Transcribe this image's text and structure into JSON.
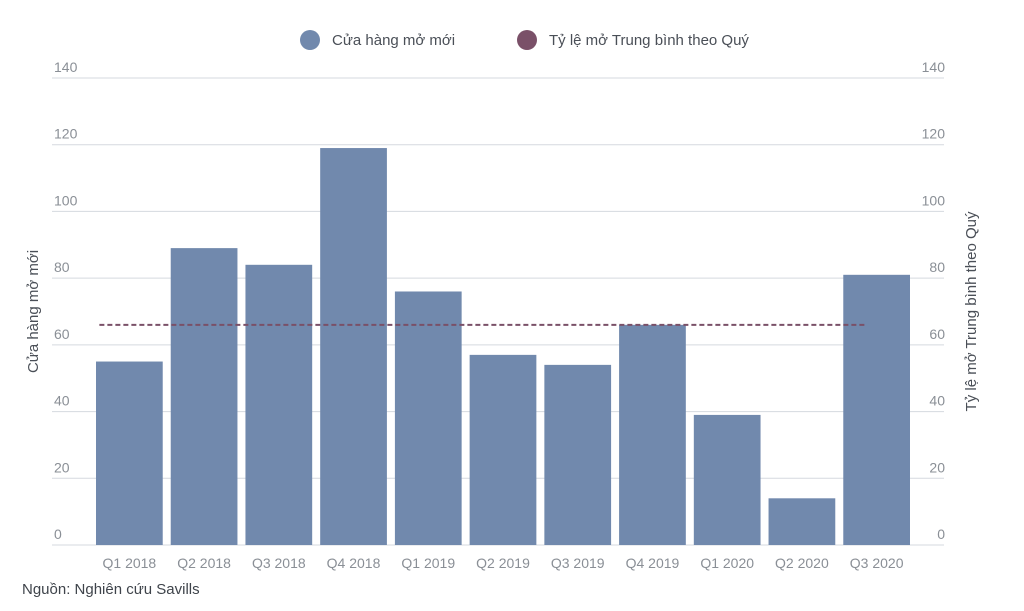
{
  "chart_data": {
    "type": "bar",
    "title": "",
    "categories": [
      "Q1 2018",
      "Q2 2018",
      "Q3 2018",
      "Q4 2018",
      "Q1 2019",
      "Q2 2019",
      "Q3 2019",
      "Q4 2019",
      "Q1 2020",
      "Q2 2020",
      "Q3 2020"
    ],
    "series": [
      {
        "name": "Cửa hàng mở mới",
        "type": "bar",
        "color": "#7189ad",
        "values": [
          55,
          89,
          84,
          119,
          76,
          57,
          54,
          66,
          39,
          14,
          81
        ]
      },
      {
        "name": "Tỷ lệ mở Trung bình theo Quý",
        "type": "dashed-line",
        "color": "#7a5068",
        "values": [
          66,
          66,
          66,
          66,
          66,
          66,
          66,
          66,
          66,
          66,
          66
        ]
      }
    ],
    "ylabel_left": "Cửa hàng mở mới",
    "ylabel_right": "Tỷ lệ mở Trung bình theo Quý",
    "ylim": [
      0,
      140
    ],
    "yticks": [
      0,
      20,
      40,
      60,
      80,
      100,
      120,
      140
    ],
    "grid": true,
    "legend_position": "top"
  },
  "legend": {
    "bars_label": "Cửa hàng mở mới",
    "line_label": "Tỷ lệ mở Trung bình theo Quý",
    "bars_color": "#7189ad",
    "line_color": "#7a5068"
  },
  "source": "Nguồn: Nghiên cứu Savills"
}
